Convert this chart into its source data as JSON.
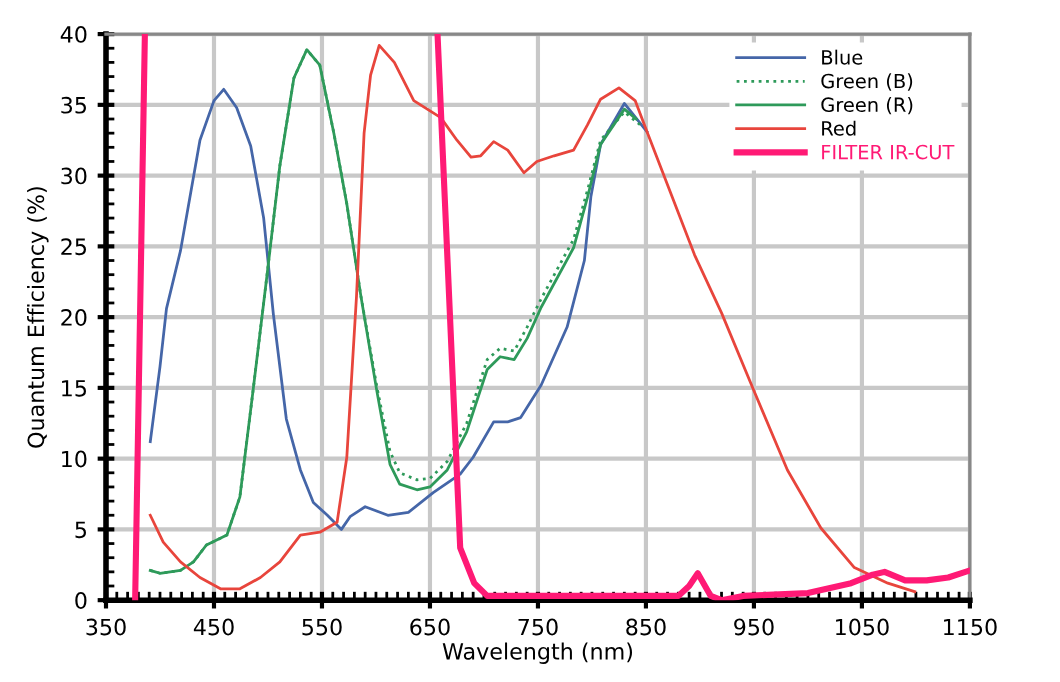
{
  "chart_data": {
    "type": "line",
    "xlabel": "Wavelength (nm)",
    "ylabel": "Quantum Efficiency (%)",
    "xlim": [
      350,
      1150
    ],
    "xticks": [
      350,
      450,
      550,
      650,
      750,
      850,
      950,
      1050,
      1150
    ],
    "ylim": [
      0,
      40
    ],
    "yticks": [
      0,
      5,
      10,
      15,
      20,
      25,
      30,
      35,
      40
    ],
    "grid": true,
    "legend": "top right",
    "series": [
      {
        "name": "Blue",
        "color": "#4566a8",
        "line_style": "solid",
        "x": [
          391,
          400,
          406,
          419,
          437,
          450,
          459,
          471,
          484,
          496,
          505,
          517,
          530,
          542,
          555,
          568,
          576,
          590,
          611,
          630,
          653,
          678,
          690,
          709,
          722,
          734,
          753,
          777,
          793,
          799,
          808,
          830,
          851
        ],
        "values": [
          11.2,
          16.5,
          20.6,
          24.7,
          32.5,
          35.3,
          36.1,
          34.8,
          32.1,
          27,
          20.2,
          12.8,
          9.2,
          6.9,
          6.0,
          5.0,
          5.9,
          6.6,
          6.0,
          6.2,
          7.6,
          8.9,
          10.1,
          12.6,
          12.6,
          12.9,
          15.2,
          19.3,
          24,
          28.5,
          32.2,
          35.1,
          33.1
        ]
      },
      {
        "name": "Green (B)",
        "color": "#2e9a5a",
        "line_style": "dotted",
        "x": [
          391,
          400,
          419,
          431,
          443,
          462,
          474,
          486,
          499,
          511,
          524,
          536,
          548,
          561,
          573,
          586,
          601,
          613,
          622,
          638,
          650,
          666,
          684,
          703,
          715,
          728,
          740,
          753,
          783,
          796,
          808,
          830,
          846
        ],
        "values": [
          2.1,
          1.9,
          2.1,
          2.7,
          3.9,
          4.6,
          7.3,
          14.7,
          22.9,
          30.7,
          36.9,
          38.9,
          37.8,
          33,
          28,
          21.5,
          15,
          10.5,
          9,
          8.5,
          8.6,
          9.8,
          12.5,
          17,
          17.8,
          17.6,
          19.3,
          21.3,
          25.5,
          29,
          32.5,
          34.5,
          33.5
        ]
      },
      {
        "name": "Green (R)",
        "color": "#2e9a5a",
        "line_style": "solid",
        "x": [
          391,
          400,
          419,
          431,
          443,
          462,
          474,
          486,
          499,
          511,
          524,
          536,
          548,
          561,
          573,
          586,
          601,
          613,
          622,
          638,
          650,
          666,
          684,
          703,
          715,
          728,
          740,
          753,
          783,
          796,
          808,
          830,
          841
        ],
        "values": [
          2.1,
          1.9,
          2.1,
          2.7,
          3.9,
          4.6,
          7.3,
          14.7,
          22.9,
          30.7,
          36.9,
          38.9,
          37.8,
          33,
          28,
          21.5,
          14.7,
          9.6,
          8.2,
          7.8,
          8.0,
          9.2,
          11.9,
          16.3,
          17.2,
          17.0,
          18.5,
          20.7,
          24.9,
          28.5,
          32.2,
          34.7,
          34.0
        ]
      },
      {
        "name": "Red",
        "color": "#e8453c",
        "line_style": "solid",
        "x": [
          391,
          403,
          419,
          437,
          456,
          474,
          493,
          511,
          530,
          548,
          564,
          573,
          582,
          589,
          595,
          603,
          617,
          635,
          660,
          675,
          688,
          697,
          709,
          722,
          737,
          749,
          765,
          783,
          796,
          808,
          825,
          840,
          851,
          895,
          920,
          950,
          981,
          1012,
          1043,
          1074,
          1099
        ],
        "values": [
          6.0,
          4.1,
          2.7,
          1.6,
          0.8,
          0.8,
          1.6,
          2.7,
          4.6,
          4.8,
          5.5,
          10.1,
          21.5,
          33,
          37.1,
          39.2,
          38.0,
          35.3,
          34.1,
          32.5,
          31.3,
          31.4,
          32.4,
          31.8,
          30.2,
          31.0,
          31.4,
          31.8,
          33.6,
          35.4,
          36.2,
          35.3,
          33.1,
          24.4,
          20.3,
          14.8,
          9.2,
          5.1,
          2.3,
          1.2,
          0.6
        ]
      },
      {
        "name": "FILTER IR-CUT",
        "color": "#ff1a75",
        "line_style": "solid",
        "x": [
          377,
          386,
          500,
          657,
          678,
          691,
          703,
          750,
          850,
          880,
          890,
          898,
          910,
          920,
          940,
          1000,
          1040,
          1060,
          1071,
          1090,
          1110,
          1130,
          1150
        ],
        "values": [
          0,
          40,
          null,
          40,
          3.7,
          1.2,
          0.3,
          0.3,
          0.3,
          0.3,
          1.0,
          1.9,
          0.3,
          0,
          0.3,
          0.5,
          1.2,
          1.8,
          2.0,
          1.4,
          1.4,
          1.6,
          2.1
        ]
      }
    ]
  }
}
